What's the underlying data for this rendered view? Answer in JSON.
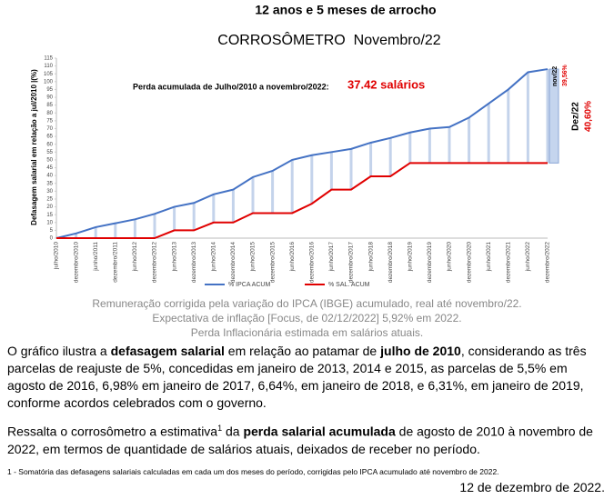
{
  "document": {
    "title": "12 anos e 5 meses de arrocho",
    "notes": [
      "Remuneração corrigida pela variação do IPCA (IBGE) acumulado, real até novembro/22.",
      "Expectativa de inflação [Focus, de 02/12/2022]  5,92% em 2022.",
      "Perda Inflacionária estimada em salários atuais."
    ],
    "paragraphs": [
      [
        "O gráfico ilustra a ",
        "defasagem salarial",
        " em relação ao patamar de ",
        "julho de 2010",
        ", considerando as três parcelas de reajuste de 5%, concedidas em janeiro de 2013, 2014 e 2015, as parcelas de 5,5% em agosto de 2016, 6,98% em janeiro de 2017, 6,64%, em janeiro de 2018, e 6,31%, em janeiro de 2019, conforme acordos celebrados com o governo."
      ],
      [
        "Ressalta o corrosômetro a estimativa",
        "1",
        " da ",
        "perda salarial acumulada",
        " de agosto de 2010 à novembro de 2022, em termos de quantidade de salários atuais, deixados de receber no período."
      ]
    ],
    "footnote": "1 - Somatória das defasagens salariais calculadas em cada um dos meses do período, corrigidas pelo IPCA acumulado até novembro de 2022.",
    "date": "12 de dezembro de 2022."
  },
  "chart_data": {
    "type": "line",
    "title": "CORROSÔMETRO  Novembro/22",
    "y_label": "Defasagem salarial em relação a jul/2010 |(%)",
    "annotations": [
      "Perda acumulada de Julho/2010 a novembro/2022:",
      "37.42 salários",
      "nov/22",
      "39,56%",
      "Dez/22",
      "40,60%"
    ],
    "categories": [
      "julho/2010",
      "dezembro/2010",
      "junho/2011",
      "dezembro/2011",
      "junho/2012",
      "dezembro/2012",
      "junho/2013",
      "dezembro/2013",
      "junho/2014",
      "dezembro/2014",
      "junho/2015",
      "dezembro/2015",
      "junho/2016",
      "dezembro/2016",
      "junho/2017",
      "dezembro/2017",
      "junho/2018",
      "dezembro/2018",
      "junho/2019",
      "dezembro/2019",
      "junho/2020",
      "dezembro/2020",
      "junho/2021",
      "dezembro/2021",
      "junho/2022",
      "dezembro/2022"
    ],
    "series": [
      {
        "name": "% IPCA ACUM",
        "color": "#4472c4",
        "values": [
          0,
          3,
          7,
          9.5,
          12,
          15.5,
          20,
          22.5,
          28,
          31,
          39,
          43,
          50,
          53,
          55,
          57,
          61,
          64,
          67.5,
          70,
          71,
          77,
          86,
          95,
          106,
          108
        ]
      },
      {
        "name": "% SAL. ACUM",
        "color": "#e00000",
        "values": [
          0,
          0,
          0,
          0,
          0,
          0,
          5,
          5,
          10,
          10,
          16,
          16,
          16,
          22,
          31,
          31,
          39.5,
          39.5,
          48,
          48,
          48,
          48,
          48,
          48,
          48,
          48
        ]
      }
    ],
    "ylim": [
      0,
      115
    ],
    "yticks": [
      0,
      5,
      10,
      15,
      20,
      25,
      30,
      35,
      40,
      45,
      50,
      55,
      60,
      65,
      70,
      75,
      80,
      85,
      90,
      95,
      100,
      105,
      110,
      115
    ],
    "grid": false,
    "legend": "bottom"
  }
}
